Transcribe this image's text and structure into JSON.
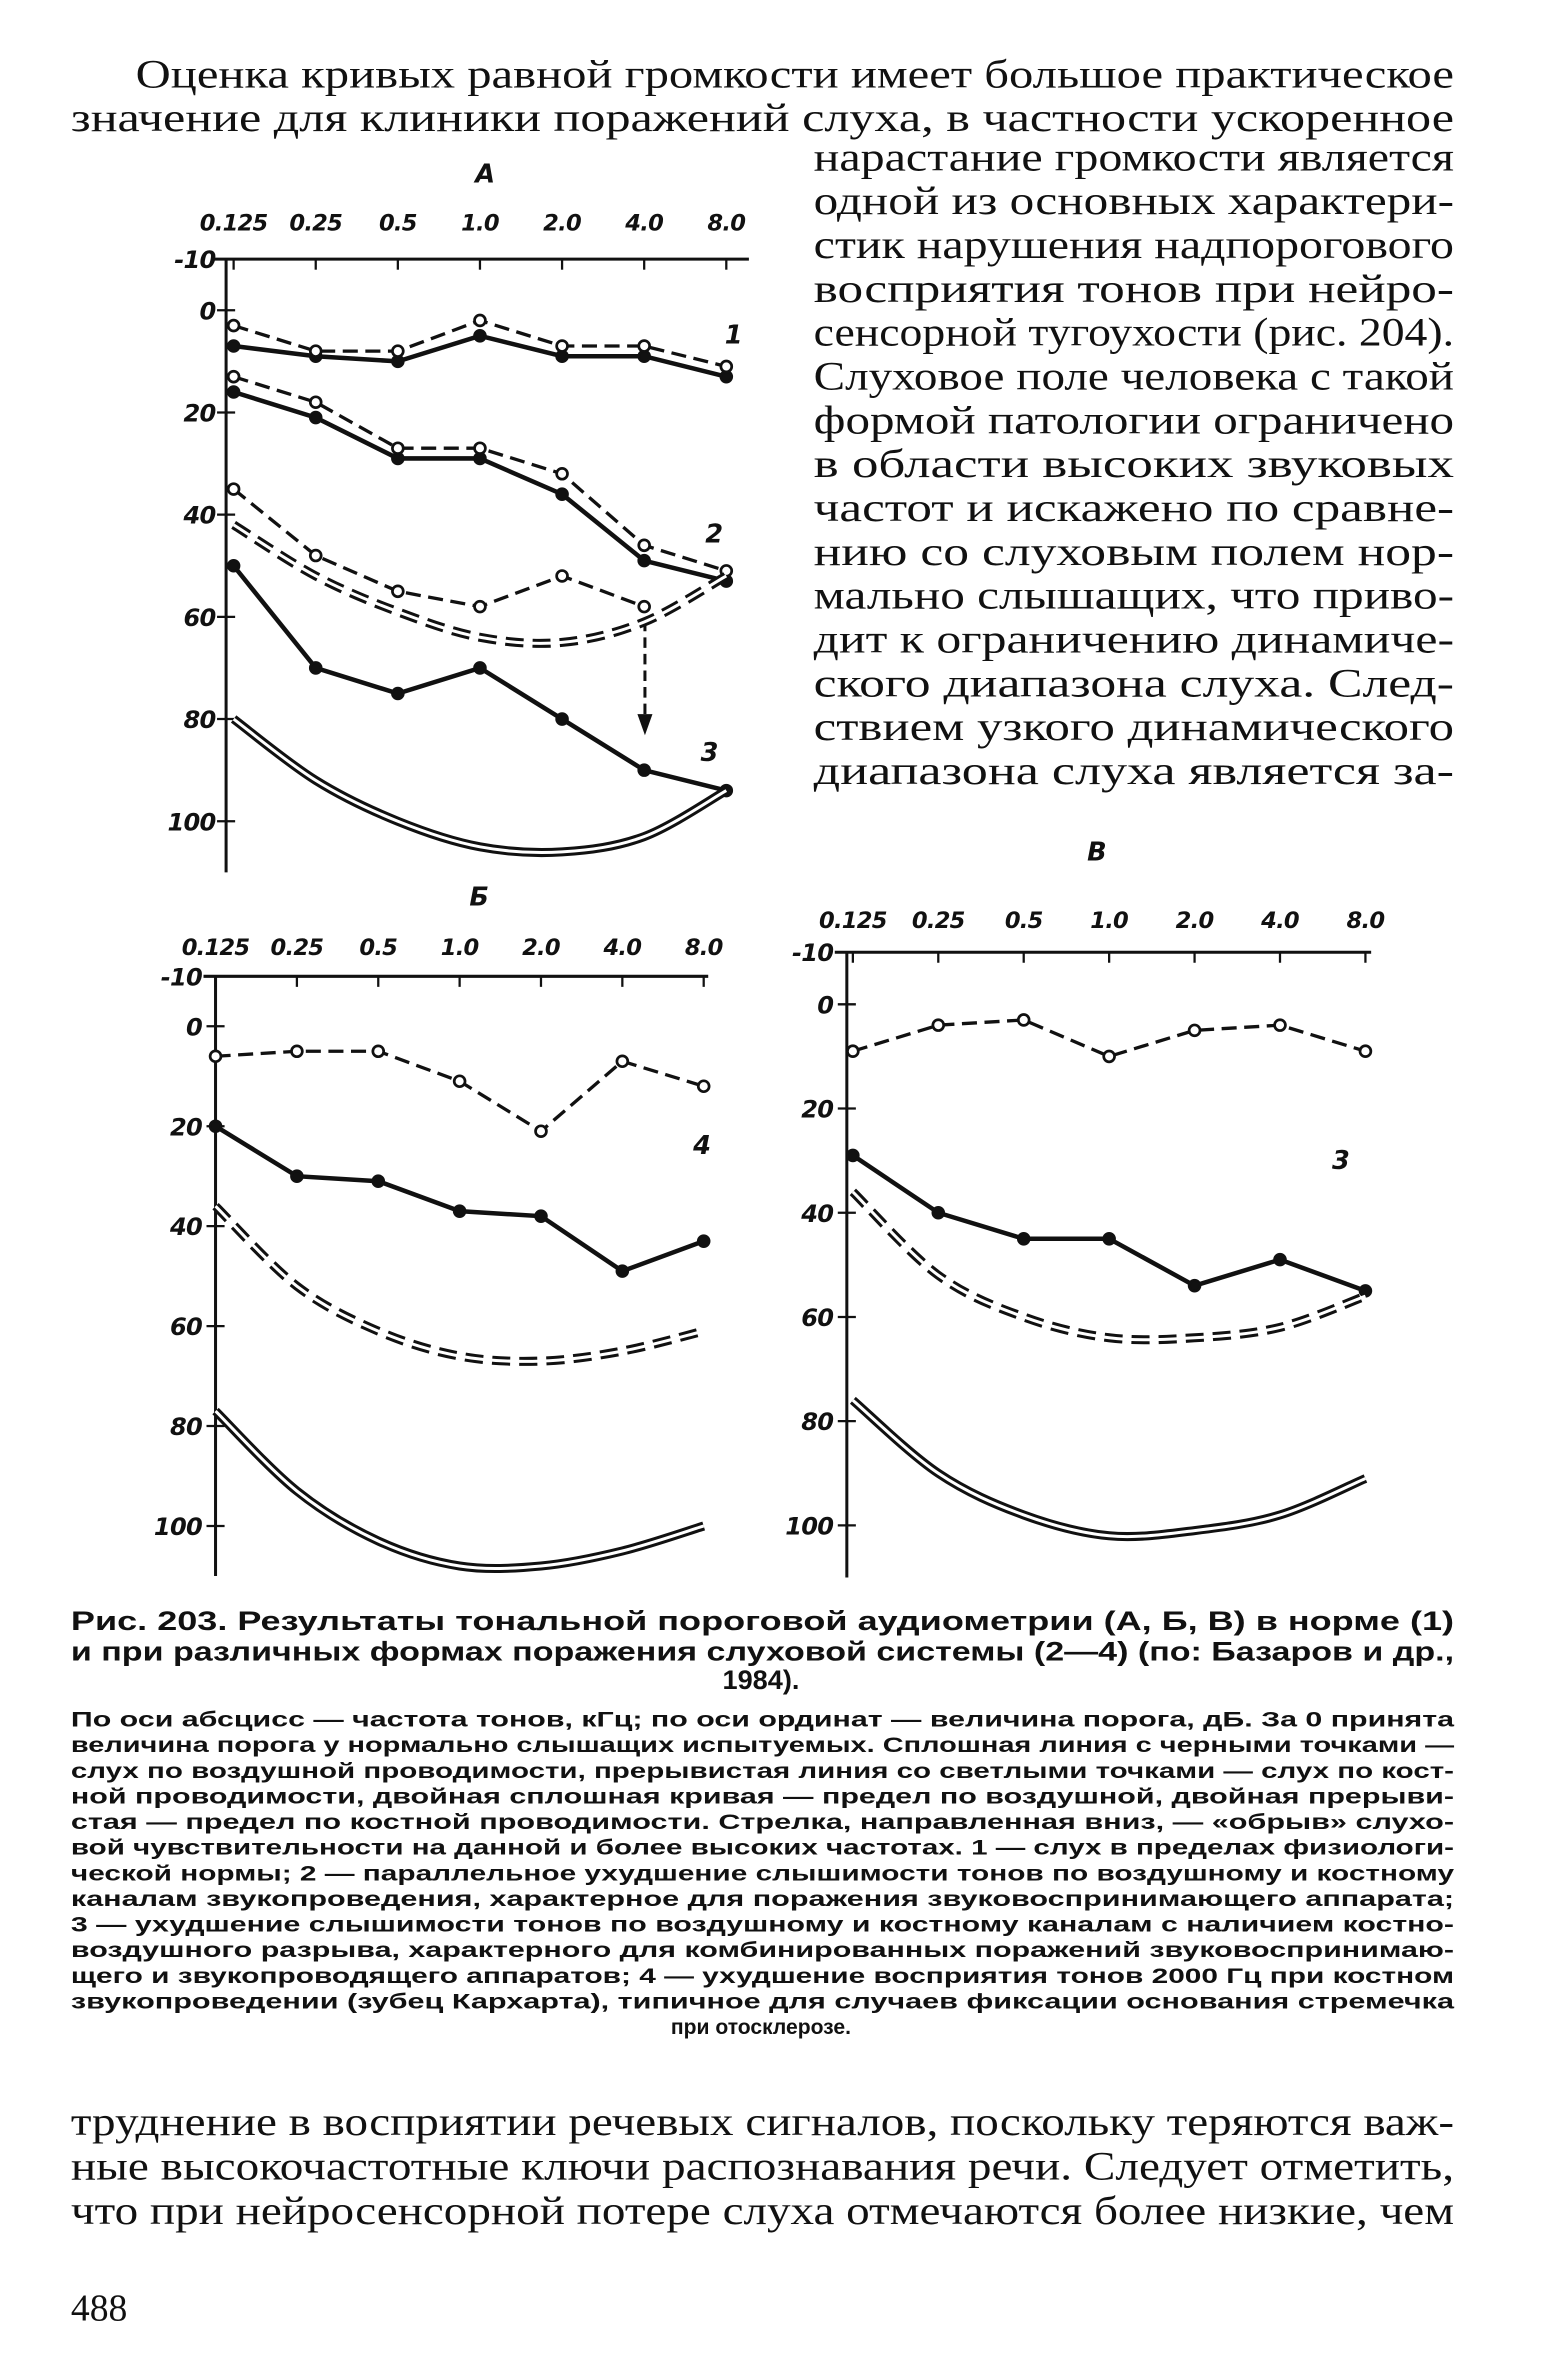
{
  "body": {
    "top_lines": [
      "Оценка кривых равной громкости имеет большое практическое",
      "значение для клиники поражений слуха, в частности ускоренное"
    ],
    "right_column": [
      "нарастание громкости является",
      "одной из основных характери-",
      "стик нарушения надпорогового",
      "восприятия тонов при нейро-",
      "сенсорной тугоухости (рис. 204).",
      "Слуховое поле человека с такой",
      "формой патологии ограничено",
      "в области высоких звуковых",
      "частот и искажено по сравне-",
      "нию со слуховым полем нор-",
      "мально слышащих, что приво-",
      "дит к ограничению динамиче-",
      "ского диапазона слуха. След-",
      "ствием узкого динамического",
      "диапазона слуха является за-"
    ],
    "bottom_lines": [
      "труднение в восприятии речевых сигналов, поскольку теряются важ-",
      "ные высокочастотные ключи распознавания речи. Следует отметить,",
      "что при нейросенсорной потере слуха отмечаются более низкие, чем"
    ],
    "page_number": "488"
  },
  "caption": {
    "title_lines": [
      "Рис. 203. Результаты тональной пороговой аудиометрии (А, Б, В) в норме (1)",
      "и при различных формах поражения слуховой системы (2—4) (по: Базаров и др.,",
      "1984)."
    ],
    "note_lines": [
      "По оси абсцисс — частота тонов, кГц; по оси ординат — величина порога, дБ. За 0 принята",
      "величина порога у нормально слышащих испытуемых. Сплошная линия с черными точками —",
      "слух по воздушной проводимости, прерывистая линия со светлыми точками — слух по кост-",
      "ной проводимости, двойная сплошная кривая — предел по воздушной, двойная прерыви-",
      "стая — предел по костной проводимости. Стрелка, направленная вниз, — «обрыв» слухо-",
      "вой чувствительности на данной и более высоких частотах. 1 — слух в пределах физиологи-",
      "ческой нормы; 2 — параллельное ухудшение слышимости тонов по воздушному и костному",
      "каналам звукопроведения, характерное для поражения звуковоспринимающего аппарата;",
      "3 — ухудшение слышимости тонов по воздушному и костному каналам с наличием костно-",
      "воздушного разрыва, характерного для комбинированных поражений звуковоспринимаю-",
      "щего и звукопроводящего аппаратов; 4 — ухудшение восприятия тонов 2000 Гц при костном",
      "звукопроведении (зубец Кархарта), типичное для случаев фиксации основания стремечка",
      "при отосклерозе."
    ]
  },
  "chart_data": [
    {
      "type": "line",
      "title": "А",
      "categories": [
        "0.125",
        "0.25",
        "0.5",
        "1.0",
        "2.0",
        "4.0",
        "8.0"
      ],
      "ylim": [
        -10,
        110
      ],
      "yticks": [
        -10,
        0,
        20,
        40,
        60,
        80,
        100
      ],
      "inverted": true,
      "annotations": [
        "1",
        "2",
        "3"
      ],
      "series": [
        {
          "style": "solid-dots",
          "color": "#111",
          "values": [
            7,
            9,
            10,
            5,
            9,
            9,
            13
          ]
        },
        {
          "style": "dashed-circles",
          "color": "#111",
          "values": [
            3,
            8,
            8,
            2,
            7,
            7,
            11
          ]
        },
        {
          "style": "solid-dots",
          "color": "#111",
          "values": [
            16,
            21,
            29,
            29,
            36,
            49,
            53
          ]
        },
        {
          "style": "dashed-circles",
          "color": "#111",
          "values": [
            13,
            18,
            27,
            27,
            32,
            46,
            51
          ]
        },
        {
          "style": "solid-dots",
          "color": "#111",
          "values": [
            50,
            70,
            75,
            70,
            80,
            90,
            94
          ]
        },
        {
          "style": "dashed-circles",
          "color": "#111",
          "values": [
            35,
            48,
            55,
            58,
            52,
            58,
            null
          ]
        },
        {
          "style": "double-dashed",
          "color": "#111",
          "values": [
            42,
            52,
            59,
            64,
            65,
            61,
            52
          ]
        },
        {
          "style": "double-solid",
          "color": "#111",
          "values": [
            80,
            92,
            100,
            105,
            106,
            103,
            94
          ]
        }
      ]
    },
    {
      "type": "line",
      "title": "Б",
      "categories": [
        "0.125",
        "0.25",
        "0.5",
        "1.0",
        "2.0",
        "4.0",
        "8.0"
      ],
      "ylim": [
        -10,
        110
      ],
      "yticks": [
        -10,
        0,
        20,
        40,
        60,
        80,
        100
      ],
      "inverted": true,
      "annotations": [
        "4"
      ],
      "series": [
        {
          "style": "dashed-circles",
          "color": "#111",
          "values": [
            6,
            5,
            5,
            11,
            21,
            7,
            12
          ]
        },
        {
          "style": "solid-dots",
          "color": "#111",
          "values": [
            20,
            30,
            31,
            37,
            38,
            49,
            43
          ]
        },
        {
          "style": "double-dashed",
          "color": "#111",
          "values": [
            36,
            52,
            61,
            66,
            67,
            65,
            61
          ]
        },
        {
          "style": "double-solid",
          "color": "#111",
          "values": [
            77,
            93,
            103,
            108,
            108,
            105,
            100
          ]
        }
      ]
    },
    {
      "type": "line",
      "title": "В",
      "categories": [
        "0.125",
        "0.25",
        "0.5",
        "1.0",
        "2.0",
        "4.0",
        "8.0"
      ],
      "ylim": [
        -10,
        110
      ],
      "yticks": [
        -10,
        0,
        20,
        40,
        60,
        80,
        100
      ],
      "inverted": true,
      "annotations": [
        "3"
      ],
      "series": [
        {
          "style": "dashed-circles",
          "color": "#111",
          "values": [
            9,
            4,
            3,
            10,
            5,
            4,
            9
          ]
        },
        {
          "style": "solid-dots",
          "color": "#111",
          "values": [
            29,
            40,
            45,
            45,
            54,
            49,
            55
          ]
        },
        {
          "style": "double-dashed",
          "color": "#111",
          "values": [
            36,
            52,
            60,
            64,
            64,
            62,
            56
          ]
        },
        {
          "style": "double-solid",
          "color": "#111",
          "values": [
            76,
            90,
            98,
            102,
            101,
            98,
            91
          ]
        }
      ]
    }
  ]
}
